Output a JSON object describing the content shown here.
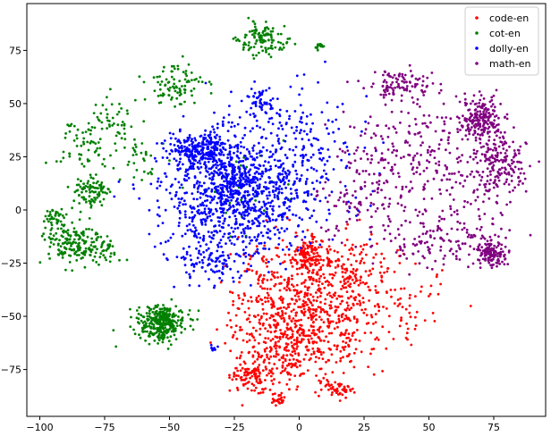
{
  "chart_data": {
    "type": "scatter",
    "title": "",
    "xlabel": "",
    "ylabel": "",
    "xlim": [
      -105,
      95
    ],
    "ylim": [
      -97,
      97
    ],
    "xticks": [
      -100,
      -75,
      -50,
      -25,
      0,
      25,
      50,
      75
    ],
    "yticks": [
      -75,
      -50,
      -25,
      0,
      25,
      50,
      75
    ],
    "grid": false,
    "legend_position": "top-right",
    "series": [
      {
        "name": "code-en",
        "color": "#ff0000",
        "clusters": [
          {
            "center": [
              5,
              -50
            ],
            "spread": [
              13,
              15
            ],
            "count": 520
          },
          {
            "center": [
              -8,
              -62
            ],
            "spread": [
              9,
              12
            ],
            "count": 240
          },
          {
            "center": [
              20,
              -30
            ],
            "spread": [
              9,
              9
            ],
            "count": 160
          },
          {
            "center": [
              3,
              -22
            ],
            "spread": [
              3,
              4
            ],
            "count": 120
          },
          {
            "center": [
              -18,
              -78
            ],
            "spread": [
              4,
              3
            ],
            "count": 90
          },
          {
            "center": [
              15,
              -84
            ],
            "spread": [
              3,
              2
            ],
            "count": 50
          },
          {
            "center": [
              -8,
              -89
            ],
            "spread": [
              1.2,
              1.2
            ],
            "count": 25
          },
          {
            "center": [
              40,
              -45
            ],
            "spread": [
              10,
              10
            ],
            "count": 70
          },
          {
            "center": [
              -10,
              -30
            ],
            "spread": [
              8,
              8
            ],
            "count": 80
          }
        ]
      },
      {
        "name": "cot-en",
        "color": "#008000",
        "clusters": [
          {
            "center": [
              -53,
              -53
            ],
            "spread": [
              4.5,
              4
            ],
            "count": 320
          },
          {
            "center": [
              -88,
              -15
            ],
            "spread": [
              6,
              6
            ],
            "count": 170
          },
          {
            "center": [
              -80,
              8
            ],
            "spread": [
              4,
              4
            ],
            "count": 90
          },
          {
            "center": [
              -95,
              -3
            ],
            "spread": [
              2,
              2
            ],
            "count": 30
          },
          {
            "center": [
              -77,
              -20
            ],
            "spread": [
              4,
              3
            ],
            "count": 40
          },
          {
            "center": [
              -85,
              30
            ],
            "spread": [
              6,
              6
            ],
            "count": 50
          },
          {
            "center": [
              -72,
              40
            ],
            "spread": [
              6,
              6
            ],
            "count": 60
          },
          {
            "center": [
              -48,
              58
            ],
            "spread": [
              6,
              5
            ],
            "count": 90
          },
          {
            "center": [
              -13,
              80
            ],
            "spread": [
              5,
              4
            ],
            "count": 110
          },
          {
            "center": [
              8,
              77
            ],
            "spread": [
              1,
              1
            ],
            "count": 14
          },
          {
            "center": [
              -60,
              25
            ],
            "spread": [
              5,
              5
            ],
            "count": 30
          },
          {
            "center": [
              -25,
              5
            ],
            "spread": [
              10,
              10
            ],
            "count": 30
          }
        ]
      },
      {
        "name": "dolly-en",
        "color": "#0000ff",
        "clusters": [
          {
            "center": [
              -25,
              5
            ],
            "spread": [
              14,
              14
            ],
            "count": 800
          },
          {
            "center": [
              -38,
              28
            ],
            "spread": [
              6,
              4
            ],
            "count": 260
          },
          {
            "center": [
              -25,
              15
            ],
            "spread": [
              6,
              6
            ],
            "count": 160
          },
          {
            "center": [
              -15,
              52
            ],
            "spread": [
              3,
              3
            ],
            "count": 40
          },
          {
            "center": [
              -10,
              30
            ],
            "spread": [
              16,
              14
            ],
            "count": 180
          },
          {
            "center": [
              5,
              25
            ],
            "spread": [
              12,
              15
            ],
            "count": 100
          },
          {
            "center": [
              -33,
              -65
            ],
            "spread": [
              0.7,
              0.7
            ],
            "count": 10
          },
          {
            "center": [
              -35,
              -25
            ],
            "spread": [
              7,
              5
            ],
            "count": 90
          }
        ]
      },
      {
        "name": "math-en",
        "color": "#800080",
        "clusters": [
          {
            "center": [
              70,
              43
            ],
            "spread": [
              4,
              5
            ],
            "count": 200
          },
          {
            "center": [
              77,
              22
            ],
            "spread": [
              5,
              7
            ],
            "count": 180
          },
          {
            "center": [
              74,
              -20
            ],
            "spread": [
              3,
              3
            ],
            "count": 130
          },
          {
            "center": [
              40,
              58
            ],
            "spread": [
              6,
              4
            ],
            "count": 100
          },
          {
            "center": [
              45,
              25
            ],
            "spread": [
              14,
              14
            ],
            "count": 230
          },
          {
            "center": [
              25,
              5
            ],
            "spread": [
              10,
              12
            ],
            "count": 110
          },
          {
            "center": [
              55,
              -15
            ],
            "spread": [
              10,
              6
            ],
            "count": 110
          },
          {
            "center": [
              65,
              0
            ],
            "spread": [
              10,
              10
            ],
            "count": 60
          }
        ]
      }
    ]
  }
}
